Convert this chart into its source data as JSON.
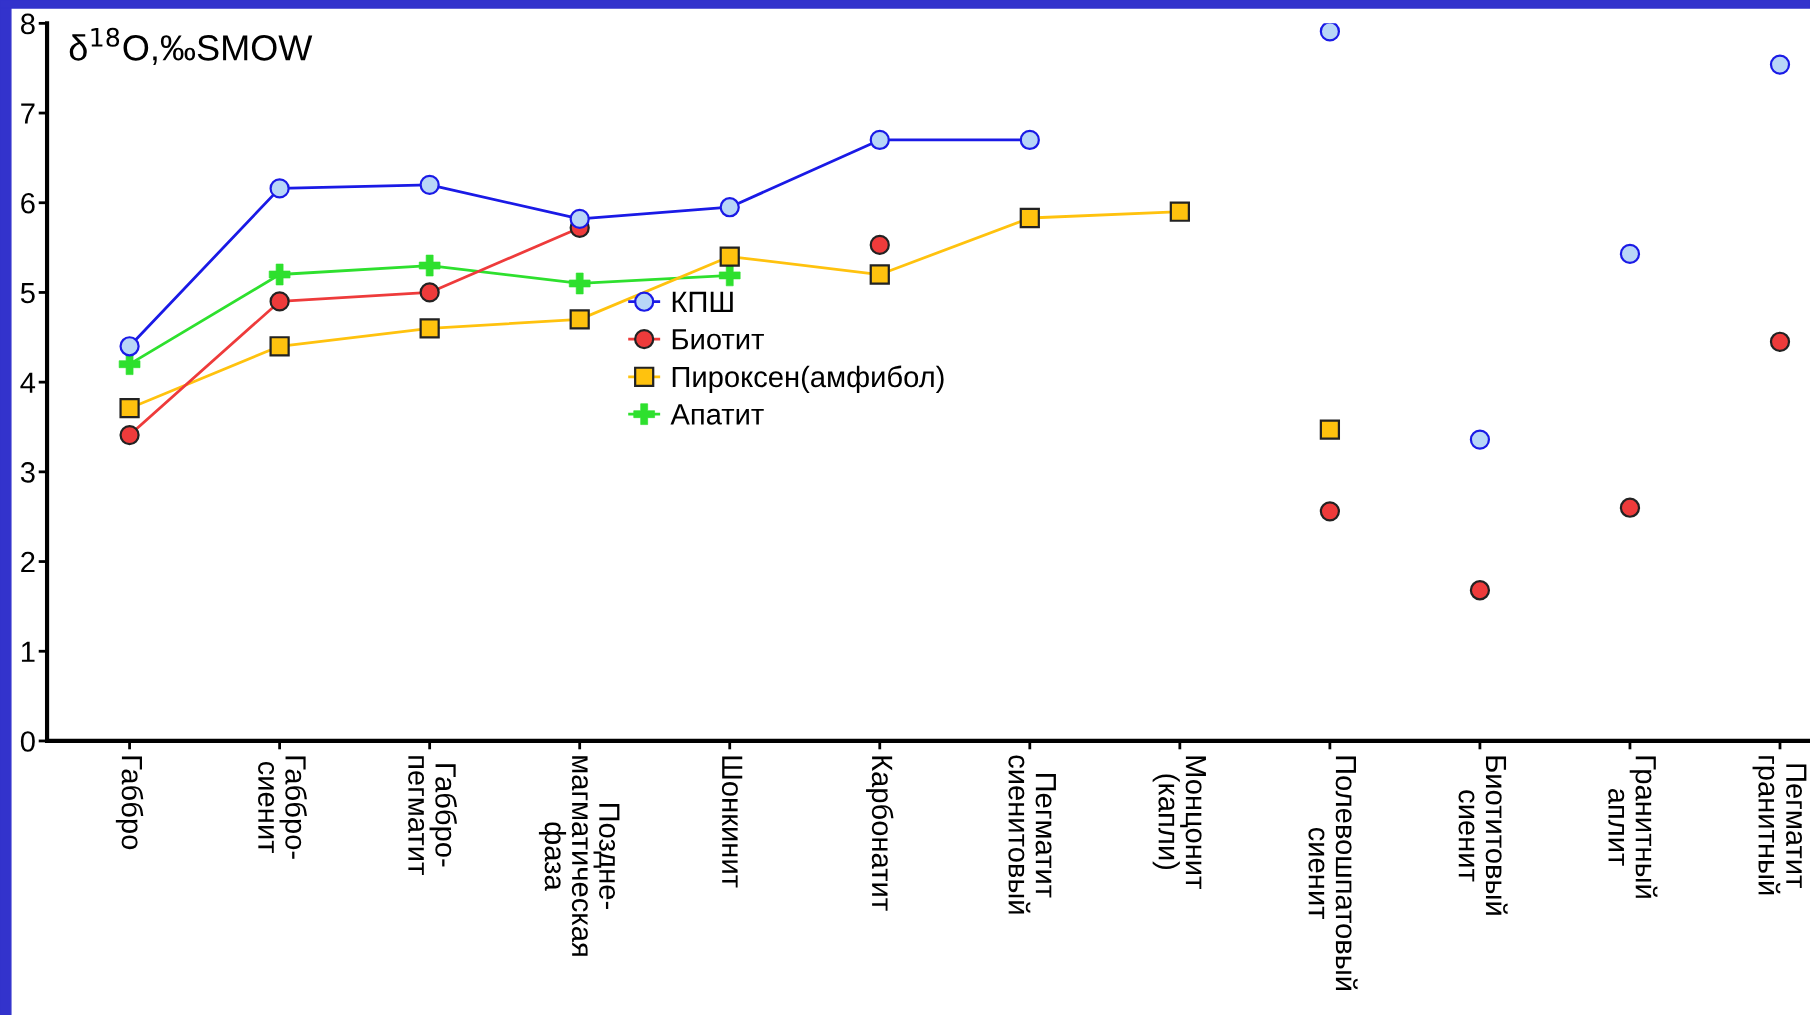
{
  "chart_data": {
    "type": "line",
    "ylabel": "δ$^{18}$O,‰SMOW",
    "categories": [
      "Габбро",
      "Габбро-\nсиенит",
      "Габбро-\nпегматит",
      "Поздне-\nмагматическая\nфаза",
      "Шонкинит",
      "Карбонатит",
      "Пегматит\nсиенитовый",
      "Монцонит\n(капли)",
      "Полевошпатовый\nсиенит",
      "Биотитовый\nсиенит",
      "Гранитный\nаплит",
      "Пегматит\nгранитный"
    ],
    "series": [
      {
        "name": "КПШ",
        "marker": "circle",
        "color": "#1a1ae6",
        "values": [
          4.4,
          6.16,
          6.2,
          5.82,
          5.95,
          6.7,
          6.7,
          null,
          null,
          null,
          null,
          null
        ]
      },
      {
        "name": "Биотит",
        "marker": "circle",
        "color": "#ee3b3b",
        "values": [
          3.41,
          4.9,
          5.0,
          5.72,
          null,
          5.53,
          null,
          null,
          null,
          null,
          null,
          null
        ]
      },
      {
        "name": "Пироксен(амфибол)",
        "marker": "square",
        "color": "#ffc20e",
        "values": [
          3.71,
          4.4,
          4.6,
          4.7,
          5.4,
          5.2,
          5.83,
          5.9,
          null,
          null,
          null,
          null
        ]
      },
      {
        "name": "Апатит",
        "marker": "cross",
        "color": "#2ee02e",
        "values": [
          4.2,
          5.2,
          5.3,
          5.1,
          5.19,
          null,
          null,
          null,
          null,
          null,
          null,
          null
        ]
      },
      {
        "type": "scatter",
        "marker": "circle",
        "color": "#1a1ae6",
        "values": [
          null,
          null,
          null,
          null,
          null,
          null,
          null,
          null,
          7.91,
          3.36,
          5.43,
          7.54
        ]
      },
      {
        "type": "scatter",
        "marker": "circle",
        "color": "#ee3b3b",
        "values": [
          null,
          null,
          null,
          null,
          null,
          null,
          null,
          null,
          2.56,
          1.68,
          2.6,
          4.45
        ]
      },
      {
        "type": "scatter",
        "marker": "square",
        "color": "#ffc20e",
        "values": [
          null,
          null,
          null,
          null,
          null,
          null,
          null,
          null,
          3.47,
          null,
          null,
          null
        ]
      }
    ],
    "ylim": [
      0,
      8
    ],
    "yticks": [
      0,
      1,
      2,
      3,
      4,
      5,
      6,
      7,
      8
    ],
    "grid": false,
    "legend": "center"
  }
}
